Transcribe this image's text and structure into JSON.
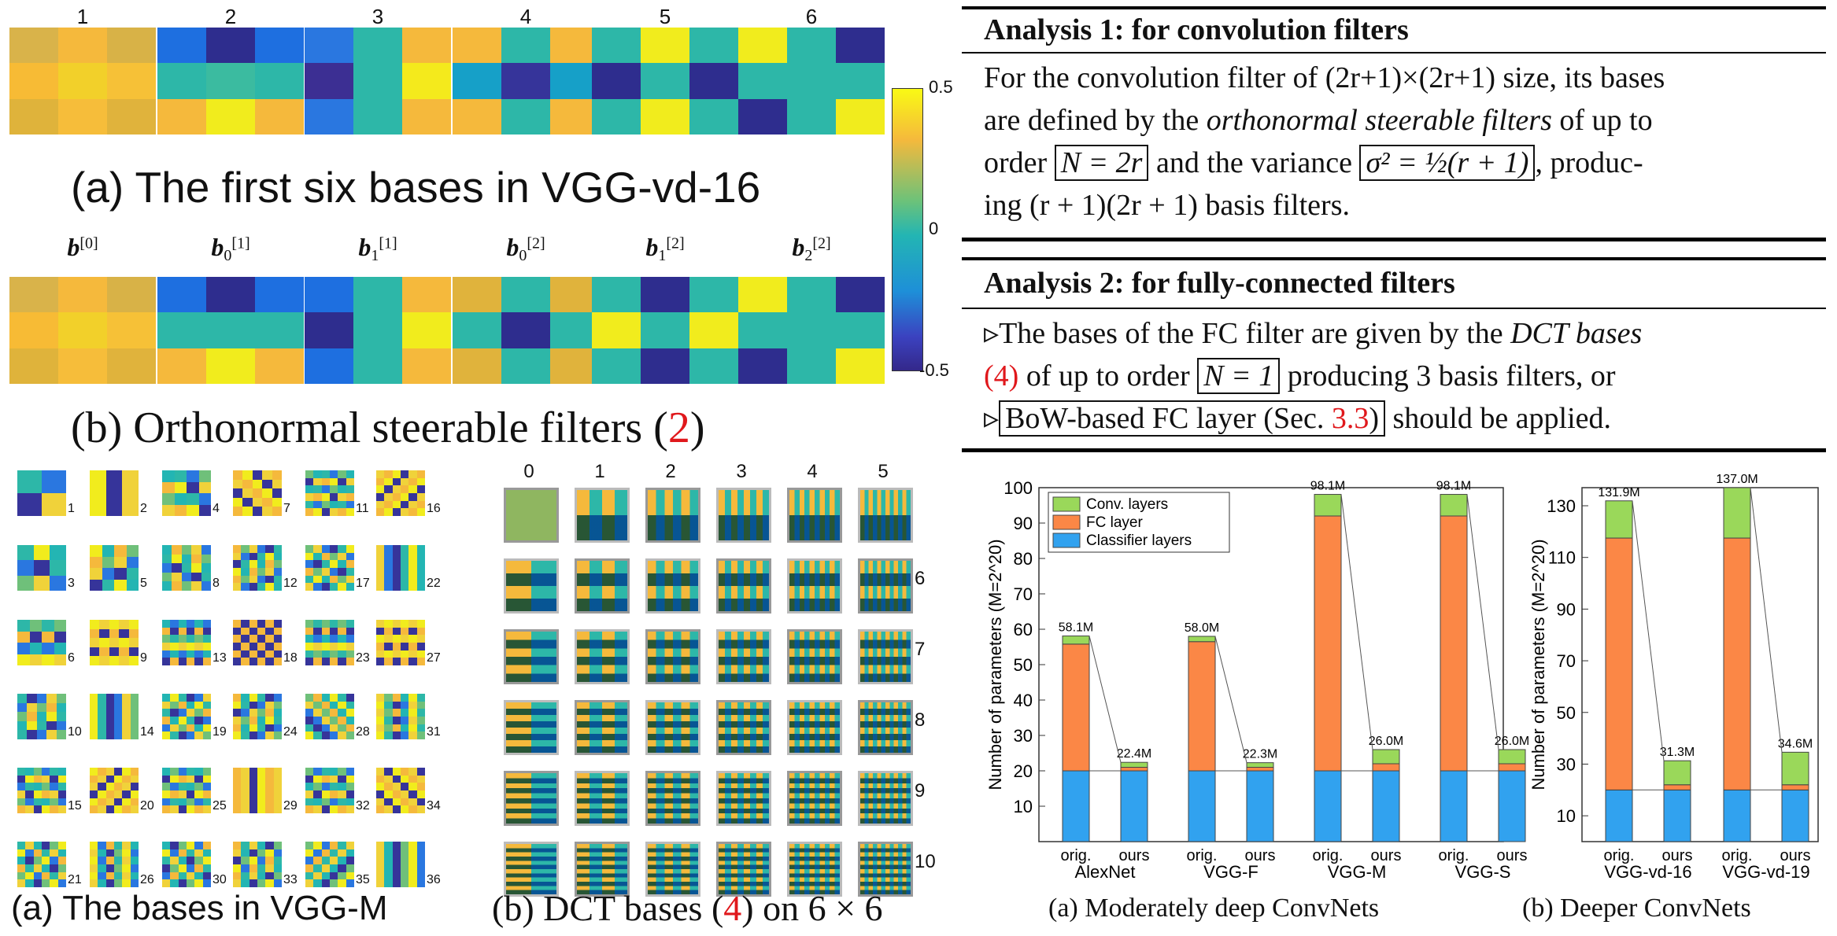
{
  "fig_a": {
    "headers": [
      "1",
      "2",
      "3",
      "4",
      "5",
      "6"
    ],
    "caption_prefix": "(a)",
    "caption_text": "The first six bases in VGG-vd-16",
    "grids": [
      [
        "#d9b34a",
        "#f5b93c",
        "#d8b247",
        "#f7bb35",
        "#f2d02a",
        "#f6c137",
        "#dfb33b",
        "#f6bd3a",
        "#e0b33c"
      ],
      [
        "#1e6fe0",
        "#2e2d8e",
        "#1e6fe0",
        "#2db7a8",
        "#3bbba0",
        "#2db7a8",
        "#f5b93c",
        "#f1ec1d",
        "#f5b93c"
      ],
      [
        "#2a77e0",
        "#2db7a8",
        "#f5b93c",
        "#3c2f93",
        "#2db7a8",
        "#f4ea1c",
        "#2a77e0",
        "#2db7a8",
        "#f5b93c"
      ],
      [
        "#f5b93c",
        "#2db7a8",
        "#f5b93c",
        "#16a0c8",
        "#36349a",
        "#16a0c8",
        "#f5b93c",
        "#2db7a8",
        "#f5b93c"
      ],
      [
        "#2db7a8",
        "#f1ec1d",
        "#2db7a8",
        "#2e2d8e",
        "#2db7a8",
        "#2e2d8e",
        "#2db7a8",
        "#f1ec1d",
        "#2db7a8"
      ],
      [
        "#f1ec1d",
        "#2db7a8",
        "#2e2d8e",
        "#2db7a8",
        "#2db7a8",
        "#2db7a8",
        "#2e2d8e",
        "#2db7a8",
        "#f1ec1d"
      ]
    ]
  },
  "fig_b": {
    "headers": [
      {
        "base": "b",
        "sub": "",
        "sup": "[0]"
      },
      {
        "base": "b",
        "sub": "0",
        "sup": "[1]"
      },
      {
        "base": "b",
        "sub": "1",
        "sup": "[1]"
      },
      {
        "base": "b",
        "sub": "0",
        "sup": "[2]"
      },
      {
        "base": "b",
        "sub": "1",
        "sup": "[2]"
      },
      {
        "base": "b",
        "sub": "2",
        "sup": "[2]"
      }
    ],
    "caption_prefix": "(b)",
    "caption_text": "Orthonormal steerable filters",
    "caption_ref": "2",
    "grids": [
      [
        "#d9b34a",
        "#f5b93c",
        "#d8b247",
        "#f7bb35",
        "#f2d02a",
        "#f6c137",
        "#dfb33b",
        "#f6bd3a",
        "#e0b33c"
      ],
      [
        "#1e6fe0",
        "#2e2d8e",
        "#1e6fe0",
        "#2db7a8",
        "#2db7a8",
        "#2db7a8",
        "#f5b93c",
        "#f1ec1d",
        "#f5b93c"
      ],
      [
        "#1e6fe0",
        "#2db7a8",
        "#f5b93c",
        "#2e2d8e",
        "#2db7a8",
        "#f1ec1d",
        "#1e6fe0",
        "#2db7a8",
        "#f5b93c"
      ],
      [
        "#e0b33c",
        "#2db7a8",
        "#e0b33c",
        "#2db7a8",
        "#2e2d8e",
        "#2db7a8",
        "#e0b33c",
        "#2db7a8",
        "#e0b33c"
      ],
      [
        "#2db7a8",
        "#2e2d8e",
        "#2db7a8",
        "#f1ec1d",
        "#2db7a8",
        "#f1ec1d",
        "#2db7a8",
        "#2e2d8e",
        "#2db7a8"
      ],
      [
        "#f1ec1d",
        "#2db7a8",
        "#2e2d8e",
        "#2db7a8",
        "#2db7a8",
        "#2db7a8",
        "#2e2d8e",
        "#2db7a8",
        "#f1ec1d"
      ]
    ]
  },
  "colorbar": {
    "top": "0.5",
    "mid": "0",
    "bottom": "-0.5"
  },
  "vggm": {
    "caption_prefix": "(a)",
    "caption_text": "The bases in VGG-M",
    "labels": [
      [
        "1",
        "2",
        "4",
        "7",
        "11",
        "16"
      ],
      [
        "3",
        "5",
        "8",
        "12",
        "17",
        "22"
      ],
      [
        "6",
        "9",
        "13",
        "18",
        "23",
        "27"
      ],
      [
        "10",
        "14",
        "19",
        "24",
        "28",
        "31"
      ],
      [
        "15",
        "20",
        "25",
        "29",
        "32",
        "34"
      ],
      [
        "21",
        "26",
        "30",
        "33",
        "35",
        "36"
      ]
    ]
  },
  "dct": {
    "col_labels": [
      "0",
      "1",
      "2",
      "3",
      "4",
      "5"
    ],
    "row_labels": [
      "6",
      "7",
      "8",
      "9",
      "10"
    ],
    "caption_prefix": "(b)",
    "caption_text": "DCT bases",
    "caption_ref": "4",
    "caption_suffix": "on 6 × 6"
  },
  "analysis1": {
    "title": "Analysis 1: for convolution filters",
    "line1": "For the convolution filter of (2r+1)×(2r+1) size, its bases",
    "line2_a": "are defined by the",
    "line2_em": "orthonormal steerable filters",
    "line2_b": "of up to",
    "line3_a": "order",
    "line3_box1": "N = 2r",
    "line3_b": "and the variance",
    "line3_box2": "σ² = ½(r + 1)",
    "line3_c": ", produc-",
    "line4": "ing (r + 1)(2r + 1) basis filters."
  },
  "analysis2": {
    "title": "Analysis 2: for fully-connected filters",
    "line1_a": "▹The bases of the FC filter are given by the",
    "line1_em": "DCT bases",
    "line2_ref": "(4)",
    "line2_a": "of up to order",
    "line2_box": "N = 1",
    "line2_b": "producing 3 basis filters, or",
    "line3_pre": "▹",
    "line3_box_a": "BoW-based FC layer (Sec.",
    "line3_box_ref": "3.3",
    "line3_box_b": ")",
    "line3_b": "should be applied."
  },
  "chart_data": [
    {
      "type": "bar",
      "stacked": true,
      "ylabel": "Number of parameters (M=2^20)",
      "ylim": [
        0,
        100
      ],
      "yticks": [
        10,
        20,
        30,
        40,
        50,
        60,
        70,
        80,
        90,
        100
      ],
      "legend": [
        "Conv. layers",
        "FC layer",
        "Classifier layers"
      ],
      "legend_placement": "top-left",
      "colors": {
        "conv": "#9ad85a",
        "fc": "#fb8746",
        "classifier": "#31a2ef"
      },
      "groups": [
        "AlexNet",
        "VGG-F",
        "VGG-M",
        "VGG-S"
      ],
      "bar_labels": [
        "orig.",
        "ours"
      ],
      "series": [
        {
          "name": "Classifier layers",
          "orig": [
            20,
            20,
            20,
            20
          ],
          "ours": [
            20,
            20,
            20,
            20
          ]
        },
        {
          "name": "FC layer",
          "orig": [
            35.8,
            36.5,
            72.0,
            72.0
          ],
          "ours": [
            1.0,
            1.0,
            2.0,
            2.0
          ]
        },
        {
          "name": "Conv. layers",
          "orig": [
            2.3,
            1.5,
            6.1,
            6.1
          ],
          "ours": [
            1.4,
            1.3,
            4.0,
            4.0
          ]
        }
      ],
      "totals": {
        "orig": [
          "58.1M",
          "58.0M",
          "98.1M",
          "98.1M"
        ],
        "ours": [
          "22.4M",
          "22.3M",
          "26.0M",
          "26.0M"
        ]
      },
      "caption": "(a) Moderately deep ConvNets"
    },
    {
      "type": "bar",
      "stacked": true,
      "ylabel": "Number of parameters (M=2^20)",
      "ylim": [
        0,
        137
      ],
      "yticks": [
        10,
        30,
        50,
        70,
        90,
        110,
        130
      ],
      "groups": [
        "VGG-vd-16",
        "VGG-vd-19"
      ],
      "bar_labels": [
        "orig.",
        "ours"
      ],
      "series": [
        {
          "name": "Classifier layers",
          "orig": [
            20,
            20
          ],
          "ours": [
            20,
            20
          ]
        },
        {
          "name": "FC layer",
          "orig": [
            97.5,
            97.5
          ],
          "ours": [
            2.0,
            2.0
          ]
        },
        {
          "name": "Conv. layers",
          "orig": [
            14.4,
            19.5
          ],
          "ours": [
            9.3,
            12.6
          ]
        }
      ],
      "totals": {
        "orig": [
          "131.9M",
          "137.0M"
        ],
        "ours": [
          "31.3M",
          "34.6M"
        ]
      },
      "caption": "(b) Deeper ConvNets"
    }
  ]
}
